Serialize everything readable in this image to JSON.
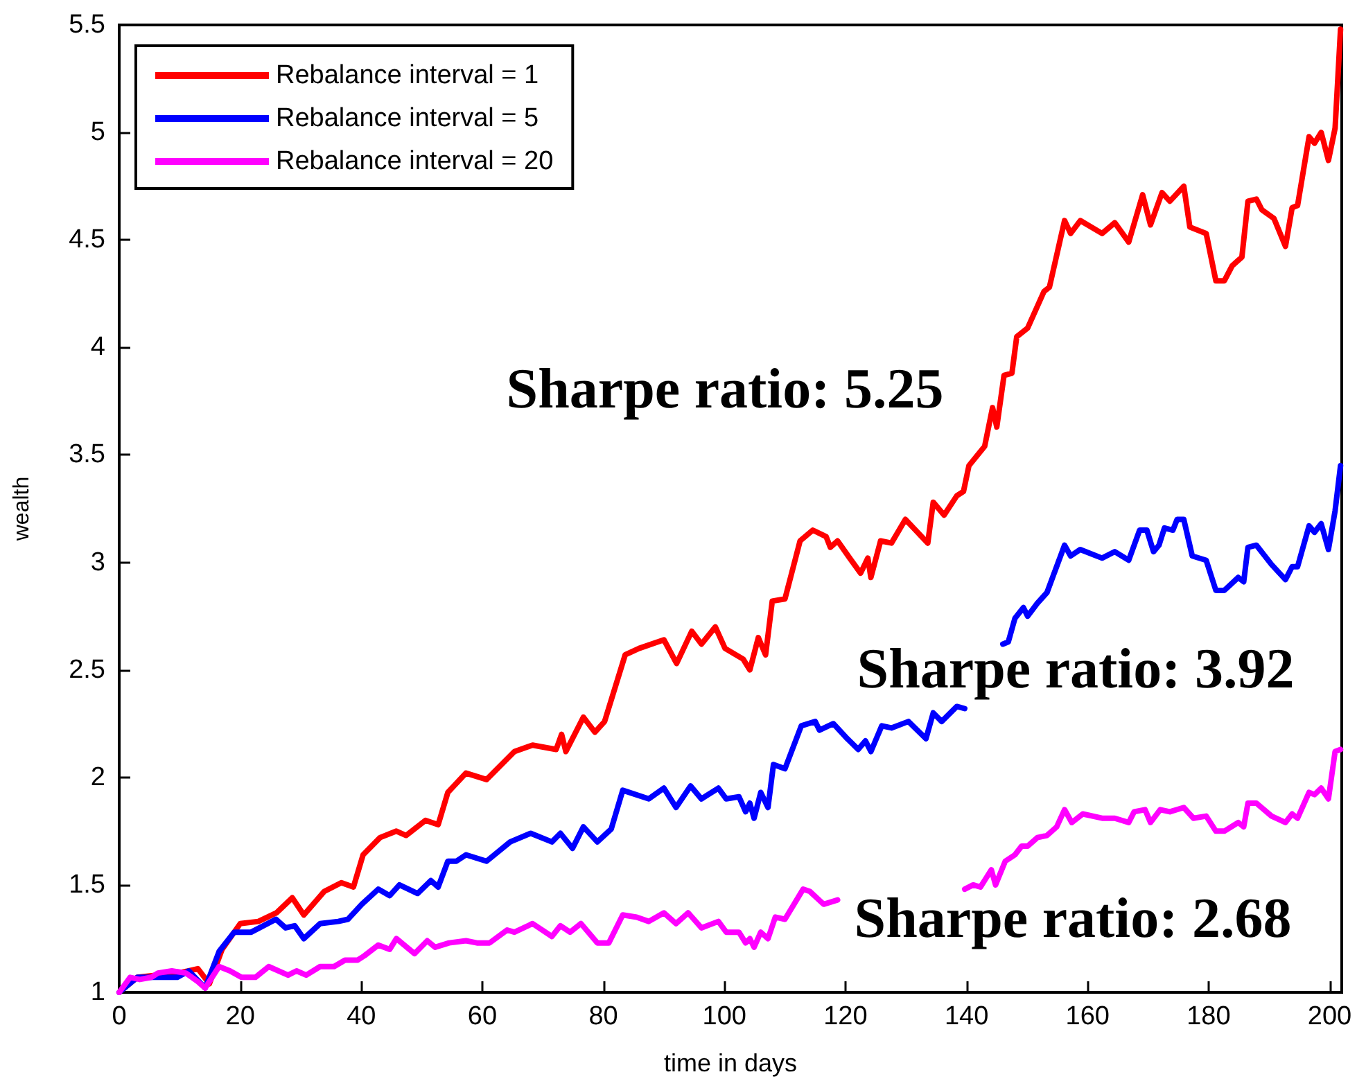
{
  "chart_data": {
    "type": "line",
    "xlabel": "time in days",
    "ylabel": "wealth",
    "xlim": [
      0,
      202
    ],
    "xticks": [
      0,
      20,
      40,
      60,
      80,
      100,
      120,
      140,
      160,
      180,
      200
    ],
    "ylim": [
      1,
      5.5
    ],
    "yticks": [
      1,
      1.5,
      2,
      2.5,
      3,
      3.5,
      4,
      4.5,
      5,
      5.5
    ],
    "legend": "top left",
    "marker": "none",
    "line_style": "solid",
    "grid": false,
    "annotations": [
      "Sharpe ratio: 5.25",
      "Sharpe ratio: 3.92",
      "Sharpe ratio: 2.68"
    ],
    "series": [
      {
        "name": "Rebalance interval = 1",
        "color": "#ff0000",
        "x": [
          0,
          3,
          9.6,
          11.5,
          13,
          14.9,
          17,
          20,
          23,
          26,
          28.6,
          30.5,
          33.9,
          36.7,
          38.7,
          40.3,
          43.1,
          45.8,
          47.4,
          50.6,
          52.7,
          54.3,
          57.3,
          60.7,
          65.3,
          68.3,
          72.2,
          73.1,
          73.8,
          76.7,
          78.6,
          80.2,
          83.6,
          85.9,
          90,
          92.1,
          94.6,
          96.2,
          98.5,
          100.1,
          103.1,
          104.2,
          105.6,
          106.8,
          107.9,
          110,
          112.5,
          114.6,
          116.8,
          117.5,
          118.7,
          120.7,
          122.5,
          123.7,
          124.2,
          125.8,
          127.6,
          129.9,
          133.6,
          134.5,
          136.3,
          138.4,
          139.5,
          140.4,
          143,
          144.3,
          145,
          146.2,
          147.5,
          148.3,
          150.1,
          152.8,
          153.7,
          156.2,
          157.2,
          158.8,
          162.4,
          164.5,
          166.8,
          169.1,
          170.4,
          172.3,
          173.6,
          175.9,
          176.9,
          179.6,
          181.2,
          182.6,
          183.9,
          185.5,
          186.5,
          187.9,
          188.8,
          190.8,
          192.7,
          193.8,
          194.7,
          196.6,
          197.5,
          198.6,
          199.8,
          200.9,
          201.8
        ],
        "values": [
          1,
          1.07,
          1.09,
          1.1,
          1.11,
          1.04,
          1.2,
          1.32,
          1.33,
          1.37,
          1.44,
          1.36,
          1.47,
          1.51,
          1.49,
          1.64,
          1.72,
          1.75,
          1.73,
          1.8,
          1.78,
          1.93,
          2.02,
          1.99,
          2.12,
          2.15,
          2.13,
          2.2,
          2.12,
          2.28,
          2.21,
          2.26,
          2.57,
          2.6,
          2.64,
          2.53,
          2.68,
          2.62,
          2.7,
          2.6,
          2.55,
          2.5,
          2.65,
          2.57,
          2.82,
          2.83,
          3.1,
          3.15,
          3.12,
          3.07,
          3.1,
          3.02,
          2.95,
          3.02,
          2.93,
          3.1,
          3.09,
          3.2,
          3.09,
          3.28,
          3.22,
          3.31,
          3.33,
          3.45,
          3.54,
          3.72,
          3.63,
          3.87,
          3.88,
          4.05,
          4.09,
          4.26,
          4.28,
          4.59,
          4.53,
          4.59,
          4.53,
          4.58,
          4.49,
          4.71,
          4.57,
          4.72,
          4.68,
          4.75,
          4.56,
          4.53,
          4.31,
          4.31,
          4.38,
          4.42,
          4.68,
          4.69,
          4.64,
          4.6,
          4.47,
          4.65,
          4.66,
          4.98,
          4.95,
          5,
          4.87,
          5.02,
          5.48
        ]
      },
      {
        "name": "Rebalance interval = 5",
        "color": "#0000ff",
        "x": [
          0,
          3,
          9.6,
          11.5,
          14.2,
          16.5,
          19,
          21.8,
          25.9,
          27.5,
          29,
          30.5,
          33.2,
          36.2,
          37.8,
          40.1,
          42.8,
          44.7,
          46.3,
          49.3,
          51.5,
          52.7,
          54.3,
          55.7,
          57.3,
          60.7,
          64.6,
          68,
          71.5,
          72.9,
          74.9,
          76.7,
          79,
          81.3,
          83.2,
          87.5,
          90,
          92,
          94.4,
          96.2,
          99,
          100.3,
          102.4,
          103.5,
          104.2,
          104.9,
          106,
          107.2,
          108.1,
          110,
          112.7,
          115,
          115.7,
          118,
          120.3,
          122.1,
          123.3,
          124.2,
          126,
          127.6,
          130.4,
          133.3,
          134.5,
          135.9,
          138.4,
          139.7,
          143,
          146,
          146.9,
          148,
          149.4,
          150.1,
          151.7,
          153.3,
          156.2,
          157.2,
          158.8,
          162.4,
          164.5,
          166.8,
          168.6,
          169.8,
          170.9,
          171.8,
          172.7,
          174.1,
          174.8,
          175.9,
          177.3,
          179.6,
          181.2,
          182.6,
          184.9,
          185.8,
          186.5,
          187.9,
          190.4,
          192.7,
          193.8,
          194.7,
          196.6,
          197.5,
          198.6,
          199.8,
          200.9,
          201.8
        ],
        "values": [
          1,
          1.07,
          1.07,
          1.1,
          1.02,
          1.19,
          1.28,
          1.28,
          1.34,
          1.3,
          1.31,
          1.25,
          1.32,
          1.33,
          1.34,
          1.41,
          1.48,
          1.45,
          1.5,
          1.46,
          1.52,
          1.49,
          1.61,
          1.61,
          1.64,
          1.61,
          1.7,
          1.74,
          1.7,
          1.74,
          1.67,
          1.77,
          1.7,
          1.76,
          1.94,
          1.9,
          1.95,
          1.86,
          1.96,
          1.9,
          1.95,
          1.9,
          1.91,
          1.84,
          1.88,
          1.81,
          1.93,
          1.86,
          2.06,
          2.04,
          2.24,
          2.26,
          2.22,
          2.25,
          2.18,
          2.13,
          2.17,
          2.12,
          2.24,
          2.23,
          2.26,
          2.18,
          2.3,
          2.26,
          2.33,
          2.32,
          null,
          2.62,
          2.63,
          2.74,
          2.79,
          2.75,
          2.81,
          2.86,
          3.08,
          3.03,
          3.06,
          3.02,
          3.05,
          3.01,
          3.15,
          3.15,
          3.05,
          3.08,
          3.16,
          3.15,
          3.2,
          3.2,
          3.03,
          3.01,
          2.87,
          2.87,
          2.93,
          2.91,
          3.07,
          3.08,
          2.99,
          2.92,
          2.98,
          2.98,
          3.17,
          3.14,
          3.18,
          3.06,
          3.24,
          3.45
        ]
      },
      {
        "name": "Rebalance interval = 20",
        "color": "#ff00ff",
        "x": [
          0,
          1.8,
          3.4,
          5.3,
          6.4,
          8.7,
          11,
          13,
          14.2,
          16.5,
          18.3,
          20.2,
          22.5,
          24.7,
          27.9,
          29.3,
          30.9,
          33.2,
          35.5,
          37.3,
          39.4,
          40.5,
          42.8,
          44.7,
          45.8,
          48.8,
          50.9,
          52.2,
          54.5,
          57.3,
          59.1,
          61.2,
          64.1,
          65.3,
          68.3,
          71.5,
          72.9,
          74.5,
          76.3,
          79,
          80.9,
          83.2,
          85.5,
          87.5,
          90,
          92,
          94,
          96.2,
          99,
          100.3,
          102.4,
          103.5,
          104.2,
          104.9,
          106,
          107.2,
          108.4,
          110,
          113,
          114.1,
          116.4,
          118.7,
          129,
          139.7,
          141.1,
          142.3,
          144.1,
          144.8,
          146.4,
          148,
          149.1,
          150.1,
          151.7,
          153.3,
          154.9,
          156.2,
          157.4,
          159.2,
          162.4,
          164.5,
          166.8,
          167.7,
          169.5,
          170.4,
          172,
          173.6,
          175.9,
          177.5,
          179.6,
          181.2,
          182.6,
          184.9,
          185.8,
          186.5,
          187.9,
          190.4,
          192.7,
          193.8,
          194.7,
          196.6,
          197.5,
          198.6,
          199.8,
          200.9,
          201.8
        ],
        "values": [
          1,
          1.07,
          1.06,
          1.07,
          1.09,
          1.1,
          1.09,
          1.05,
          1.02,
          1.12,
          1.1,
          1.07,
          1.07,
          1.12,
          1.08,
          1.1,
          1.08,
          1.12,
          1.12,
          1.15,
          1.15,
          1.17,
          1.22,
          1.2,
          1.25,
          1.18,
          1.24,
          1.21,
          1.23,
          1.24,
          1.23,
          1.23,
          1.29,
          1.28,
          1.32,
          1.26,
          1.31,
          1.28,
          1.32,
          1.23,
          1.23,
          1.36,
          1.35,
          1.33,
          1.37,
          1.32,
          1.37,
          1.3,
          1.33,
          1.28,
          1.28,
          1.23,
          1.25,
          1.21,
          1.28,
          1.25,
          1.35,
          1.34,
          1.48,
          1.47,
          1.41,
          1.43,
          null,
          1.48,
          1.5,
          1.49,
          1.57,
          1.5,
          1.61,
          1.64,
          1.68,
          1.68,
          1.72,
          1.73,
          1.77,
          1.85,
          1.79,
          1.83,
          1.81,
          1.81,
          1.79,
          1.84,
          1.85,
          1.79,
          1.85,
          1.84,
          1.86,
          1.81,
          1.82,
          1.75,
          1.75,
          1.79,
          1.77,
          1.88,
          1.88,
          1.82,
          1.79,
          1.83,
          1.81,
          1.93,
          1.92,
          1.95,
          1.9,
          2.12,
          2.13
        ]
      }
    ]
  }
}
